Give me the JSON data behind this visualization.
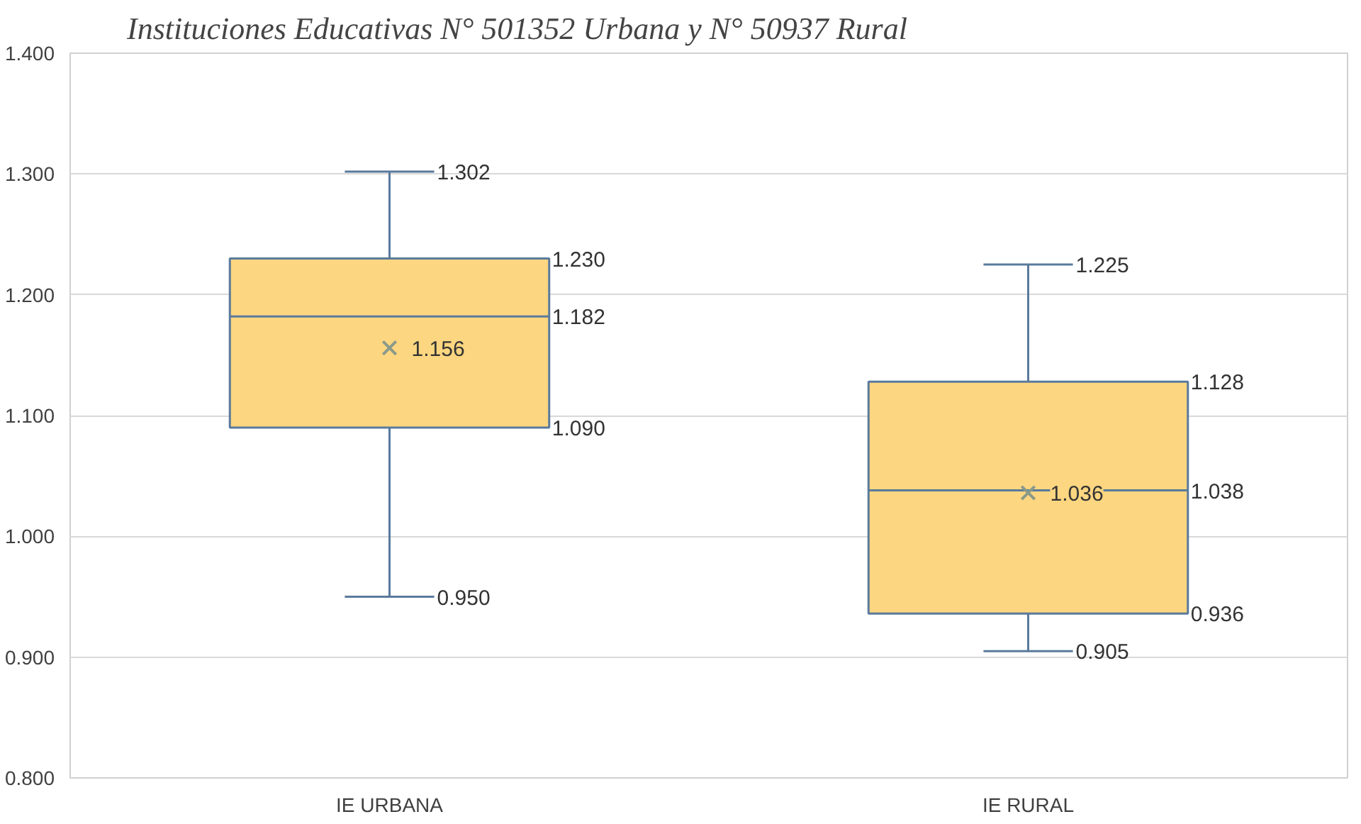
{
  "chart_data": {
    "type": "box",
    "title": "Instituciones Educativas N° 501352 Urbana y N° 50937 Rural",
    "categories": [
      "IE URBANA",
      "IE RURAL"
    ],
    "boxes": [
      {
        "low": 0.95,
        "q1": 1.09,
        "median": 1.182,
        "q3": 1.23,
        "high": 1.302,
        "mean": 1.156
      },
      {
        "low": 0.905,
        "q1": 0.936,
        "median": 1.038,
        "q3": 1.128,
        "high": 1.225,
        "mean": 1.036
      }
    ],
    "color": "#fcd680",
    "ylim": [
      0.8,
      1.4
    ],
    "yticks": [
      {
        "value": 0.8,
        "label": "0.800"
      },
      {
        "value": 0.9,
        "label": "0.900"
      },
      {
        "value": 1.0,
        "label": "1.000"
      },
      {
        "value": 1.1,
        "label": "1.100"
      },
      {
        "value": 1.2,
        "label": "1.200"
      },
      {
        "value": 1.3,
        "label": "1.300"
      },
      {
        "value": 1.4,
        "label": "1.400"
      }
    ],
    "grid": "y",
    "marker": "cross",
    "annotations": [
      "1.302",
      "1.230",
      "1.182",
      "1.156",
      "1.090",
      "0.950",
      "1.225",
      "1.128",
      "1.038",
      "1.036",
      "0.936",
      "0.905"
    ]
  }
}
